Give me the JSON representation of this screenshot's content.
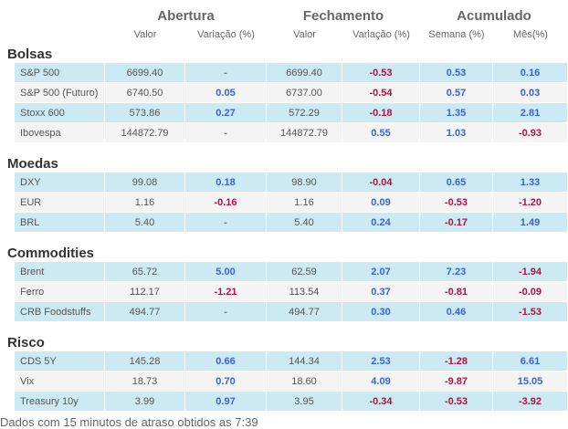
{
  "header": {
    "groups": [
      "Abertura",
      "Fechamento",
      "Acumulado"
    ],
    "columns": [
      "Valor",
      "Variação (%)",
      "Valor",
      "Variação (%)",
      "Semana (%)",
      "Mês(%)"
    ]
  },
  "sections": [
    {
      "title": "Bolsas",
      "rows": [
        [
          "S&P 500",
          "6699.40",
          "-",
          "6699.40",
          "-0.53",
          "0.53",
          "0.16"
        ],
        [
          "S&P 500 (Futuro)",
          "6740.50",
          "0.05",
          "6737.00",
          "-0.54",
          "0.57",
          "0.03"
        ],
        [
          "Stoxx 600",
          "573.86",
          "0.27",
          "572.29",
          "-0.18",
          "1.35",
          "2.81"
        ],
        [
          "Ibovespa",
          "144872.79",
          "-",
          "144872.79",
          "0.55",
          "1.03",
          "-0.93"
        ]
      ]
    },
    {
      "title": "Moedas",
      "rows": [
        [
          "DXY",
          "99.08",
          "0.18",
          "98.90",
          "-0.04",
          "0.65",
          "1.33"
        ],
        [
          "EUR",
          "1.16",
          "-0.16",
          "1.16",
          "0.09",
          "-0.53",
          "-1.20"
        ],
        [
          "BRL",
          "5.40",
          "-",
          "5.40",
          "0.24",
          "-0.17",
          "1.49"
        ]
      ]
    },
    {
      "title": "Commodities",
      "rows": [
        [
          "Brent",
          "65.72",
          "5.00",
          "62.59",
          "2.07",
          "7.23",
          "-1.94"
        ],
        [
          "Ferro",
          "112.17",
          "-1.21",
          "113.54",
          "0.37",
          "-0.81",
          "-0.09"
        ],
        [
          "CRB Foodstuffs",
          "494.77",
          "-",
          "494.77",
          "0.30",
          "0.46",
          "-1.53"
        ]
      ]
    },
    {
      "title": "Risco",
      "rows": [
        [
          "CDS 5Y",
          "145.28",
          "0.66",
          "144.34",
          "2.53",
          "-1.28",
          "6.61"
        ],
        [
          "Vix",
          "18.73",
          "0.70",
          "18.60",
          "4.09",
          "-9.87",
          "15.05"
        ],
        [
          "Treasury 10y",
          "3.99",
          "0.97",
          "3.95",
          "-0.34",
          "-0.53",
          "-3.92"
        ]
      ]
    }
  ],
  "footer": "Dados com 15 minutos de atraso obtidos as 7:39"
}
